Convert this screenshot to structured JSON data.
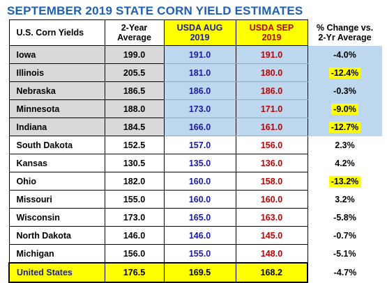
{
  "chart_data": {
    "type": "table",
    "title": "SEPTEMBER 2019 STATE CORN YIELD ESTIMATES",
    "columns": [
      "U.S. Corn Yields",
      "2-Year Average",
      "USDA AUG 2019",
      "USDA SEP 2019",
      "% Change vs. 2-Yr Average"
    ],
    "rows": [
      {
        "state": "Iowa",
        "avg": "199.0",
        "aug": "191.0",
        "sep": "191.0",
        "chg": "-4.0%",
        "highlight": false,
        "group": "major"
      },
      {
        "state": "Illinois",
        "avg": "205.5",
        "aug": "181.0",
        "sep": "180.0",
        "chg": "-12.4%",
        "highlight": true,
        "group": "major"
      },
      {
        "state": "Nebraska",
        "avg": "186.5",
        "aug": "186.0",
        "sep": "186.0",
        "chg": "-0.3%",
        "highlight": false,
        "group": "major"
      },
      {
        "state": "Minnesota",
        "avg": "188.0",
        "aug": "173.0",
        "sep": "171.0",
        "chg": "-9.0%",
        "highlight": true,
        "group": "major"
      },
      {
        "state": "Indiana",
        "avg": "184.5",
        "aug": "166.0",
        "sep": "161.0",
        "chg": "-12.7%",
        "highlight": true,
        "group": "major"
      },
      {
        "state": "South Dakota",
        "avg": "152.5",
        "aug": "157.0",
        "sep": "156.0",
        "chg": "2.3%",
        "highlight": false,
        "group": "plain"
      },
      {
        "state": "Kansas",
        "avg": "130.5",
        "aug": "135.0",
        "sep": "136.0",
        "chg": "4.2%",
        "highlight": false,
        "group": "plain"
      },
      {
        "state": "Ohio",
        "avg": "182.0",
        "aug": "160.0",
        "sep": "158.0",
        "chg": "-13.2%",
        "highlight": true,
        "group": "plain"
      },
      {
        "state": "Missouri",
        "avg": "155.0",
        "aug": "160.0",
        "sep": "160.0",
        "chg": "3.2%",
        "highlight": false,
        "group": "plain"
      },
      {
        "state": "Wisconsin",
        "avg": "173.0",
        "aug": "165.0",
        "sep": "163.0",
        "chg": "-5.8%",
        "highlight": false,
        "group": "plain"
      },
      {
        "state": "North Dakota",
        "avg": "146.0",
        "aug": "146.0",
        "sep": "145.0",
        "chg": "-0.7%",
        "highlight": false,
        "group": "plain"
      },
      {
        "state": "Michigan",
        "avg": "156.0",
        "aug": "155.0",
        "sep": "148.0",
        "chg": "-5.1%",
        "highlight": false,
        "group": "plain"
      }
    ],
    "total": {
      "state": "United States",
      "avg": "176.5",
      "aug": "169.5",
      "sep": "168.2",
      "chg": "-4.7%"
    },
    "colors": {
      "title": "#2060b0",
      "aug_text": "#1a1aa0",
      "sep_text": "#c00000",
      "header_highlight": "#ffff00",
      "major_state_fill": "#d9d9d9",
      "major_value_fill": "#bdd7ee",
      "change_highlight": "#ffff00",
      "total_fill": "#ffff00"
    }
  },
  "header": {
    "col1": "U.S. Corn Yields",
    "col2_line1": "2-Year",
    "col2_line2": "Average",
    "col3_line1": "USDA AUG",
    "col3_line2": "2019",
    "col4_line1": "USDA SEP",
    "col4_line2": "2019",
    "col5_line1": "% Change vs.",
    "col5_line2": "2-Yr Average"
  }
}
